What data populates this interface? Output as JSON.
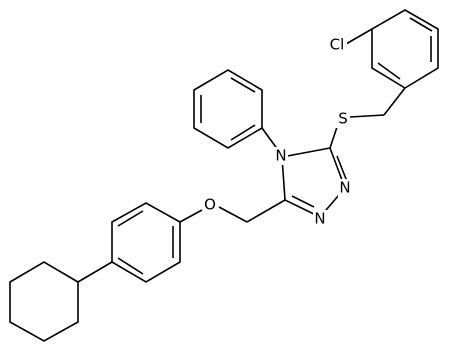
{
  "atoms": [
    "Cl",
    "S",
    "N",
    "N",
    "N",
    "O"
  ]
}
